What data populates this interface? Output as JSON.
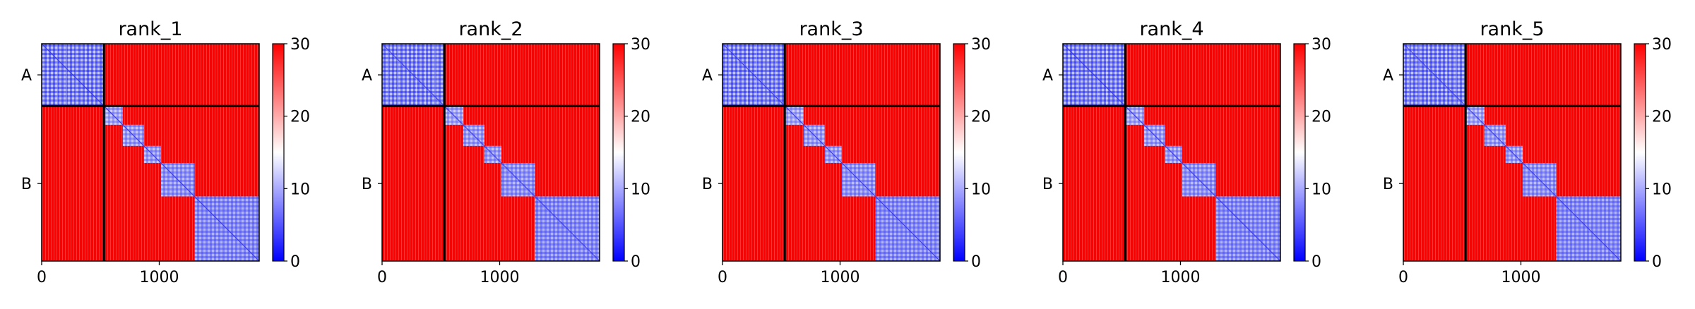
{
  "chart_data": {
    "type": "heatmap",
    "colormap": {
      "name": "bwr",
      "low": "#0000ff",
      "mid": "#ffffff",
      "high": "#ff0000"
    },
    "colorbar": {
      "range": [
        0,
        30
      ],
      "ticks": [
        0,
        10,
        20,
        30
      ]
    },
    "matrix_size": 1850,
    "x_ticks": [
      0,
      1000
    ],
    "y_ticks": [
      "A",
      "B"
    ],
    "chains": [
      {
        "label": "A",
        "start": 0,
        "end": 530
      },
      {
        "label": "B",
        "start": 530,
        "end": 1850
      }
    ],
    "block_color": "#ff0000",
    "sub_blocks": [
      {
        "start": 530,
        "end": 690,
        "level": 0.45
      },
      {
        "start": 690,
        "end": 870,
        "level": 0.4
      },
      {
        "start": 870,
        "end": 1015,
        "level": 0.4
      },
      {
        "start": 1015,
        "end": 1300,
        "level": 0.35
      },
      {
        "start": 1300,
        "end": 1850,
        "level": 0.3
      }
    ],
    "panels": [
      {
        "title": "rank_1"
      },
      {
        "title": "rank_2"
      },
      {
        "title": "rank_3"
      },
      {
        "title": "rank_4"
      },
      {
        "title": "rank_5"
      }
    ]
  }
}
